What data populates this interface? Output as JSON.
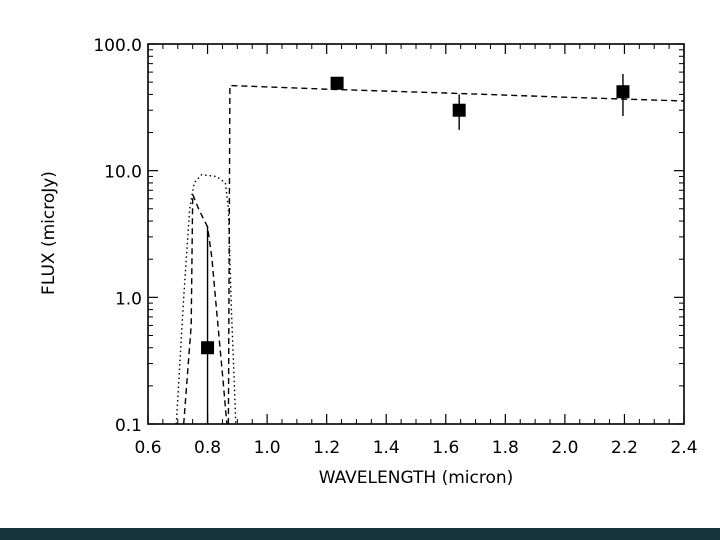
{
  "colors": {
    "footer": "#15333a",
    "ink": "#000000"
  },
  "chart_data": {
    "type": "scatter",
    "title": "",
    "xlabel": "WAVELENGTH (micron)",
    "ylabel": "FLUX (microJy)",
    "xlim": [
      0.6,
      2.4
    ],
    "ylim": [
      0.1,
      100.0
    ],
    "yscale": "log",
    "grid": false,
    "xticks": [
      "0.6",
      "0.8",
      "1.0",
      "1.2",
      "1.4",
      "1.6",
      "1.8",
      "2.0",
      "2.2",
      "2.4"
    ],
    "yticks": [
      "0.1",
      "1.0",
      "10.0",
      "100.0"
    ],
    "points": [
      {
        "x": 0.8,
        "y": 0.4,
        "ylow": 0.1,
        "yhigh": 3.6
      },
      {
        "x": 1.235,
        "y": 49,
        "ylow": 45,
        "yhigh": 53
      },
      {
        "x": 1.645,
        "y": 30,
        "ylow": 21,
        "yhigh": 40
      },
      {
        "x": 2.195,
        "y": 42,
        "ylow": 27,
        "yhigh": 58
      }
    ],
    "series": [
      {
        "style": "dashed",
        "points": [
          [
            0.72,
            0.1
          ],
          [
            0.745,
            0.6
          ],
          [
            0.75,
            6.5
          ],
          [
            0.77,
            5.0
          ],
          [
            0.79,
            4.0
          ],
          [
            0.8,
            3.6
          ],
          [
            0.815,
            2.0
          ],
          [
            0.83,
            0.8
          ],
          [
            0.85,
            0.25
          ],
          [
            0.865,
            0.1
          ]
        ]
      },
      {
        "style": "dashed",
        "points": [
          [
            0.87,
            0.1
          ],
          [
            0.875,
            47
          ],
          [
            1.2,
            44
          ],
          [
            1.6,
            41
          ],
          [
            2.0,
            38
          ],
          [
            2.4,
            35.5
          ]
        ]
      },
      {
        "style": "dotted",
        "points": [
          [
            0.695,
            0.1
          ],
          [
            0.72,
            1.0
          ],
          [
            0.74,
            5.0
          ],
          [
            0.755,
            8.0
          ],
          [
            0.78,
            9.3
          ],
          [
            0.83,
            9.0
          ],
          [
            0.86,
            8.0
          ],
          [
            0.87,
            5.0
          ],
          [
            0.88,
            0.8
          ],
          [
            0.89,
            0.2
          ],
          [
            0.895,
            0.1
          ]
        ]
      }
    ]
  }
}
